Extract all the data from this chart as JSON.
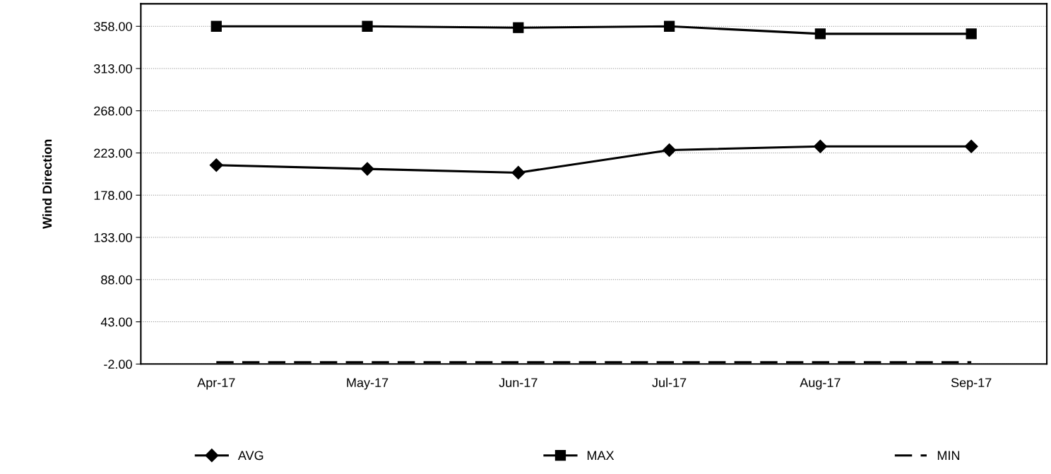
{
  "chart_data": {
    "type": "line",
    "ylabel": "Wind Direction",
    "categories": [
      "Apr-17",
      "May-17",
      "Jun-17",
      "Jul-17",
      "Aug-17",
      "Sep-17"
    ],
    "series": [
      {
        "name": "AVG",
        "color": "#000000",
        "marker": "diamond",
        "line_style": "solid",
        "values": [
          210,
          206,
          202,
          226,
          230,
          230
        ]
      },
      {
        "name": "MAX",
        "color": "#000000",
        "marker": "square",
        "line_style": "solid",
        "values": [
          358,
          358,
          356.5,
          358,
          350,
          350
        ]
      },
      {
        "name": "MIN",
        "color": "#000000",
        "marker": "none",
        "line_style": "dashed",
        "values": [
          0,
          0,
          0,
          0,
          0,
          0
        ]
      }
    ],
    "ylim": [
      -2,
      382
    ],
    "yticks": [
      {
        "value": -2,
        "label": "-2.00"
      },
      {
        "value": 43,
        "label": "43.00"
      },
      {
        "value": 88,
        "label": "88.00"
      },
      {
        "value": 133,
        "label": "133.00"
      },
      {
        "value": 178,
        "label": "178.00"
      },
      {
        "value": 223,
        "label": "223.00"
      },
      {
        "value": 268,
        "label": "268.00"
      },
      {
        "value": 313,
        "label": "313.00"
      },
      {
        "value": 358,
        "label": "358.00"
      }
    ],
    "grid": "y",
    "legend": "bottom"
  }
}
